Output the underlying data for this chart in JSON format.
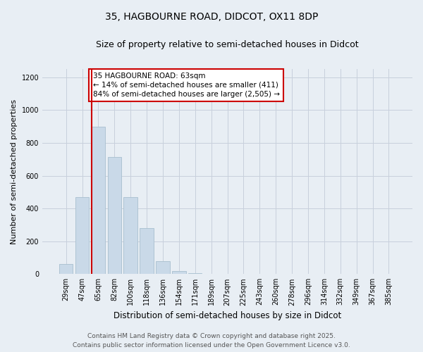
{
  "title1": "35, HAGBOURNE ROAD, DIDCOT, OX11 8DP",
  "title2": "Size of property relative to semi-detached houses in Didcot",
  "xlabel": "Distribution of semi-detached houses by size in Didcot",
  "ylabel": "Number of semi-detached properties",
  "bar_labels": [
    "29sqm",
    "47sqm",
    "65sqm",
    "82sqm",
    "100sqm",
    "118sqm",
    "136sqm",
    "154sqm",
    "171sqm",
    "189sqm",
    "207sqm",
    "225sqm",
    "243sqm",
    "260sqm",
    "278sqm",
    "296sqm",
    "314sqm",
    "332sqm",
    "349sqm",
    "367sqm",
    "385sqm"
  ],
  "bar_values": [
    60,
    470,
    900,
    715,
    470,
    280,
    80,
    20,
    5,
    0,
    0,
    0,
    0,
    0,
    0,
    0,
    0,
    0,
    0,
    0,
    0
  ],
  "bar_color": "#c9d9e8",
  "bar_edge_color": "#a8bfcf",
  "property_bin_index": 1,
  "annotation_text": "35 HAGBOURNE ROAD: 63sqm\n← 14% of semi-detached houses are smaller (411)\n84% of semi-detached houses are larger (2,505) →",
  "annotation_box_color": "#ffffff",
  "annotation_box_edge": "#cc0000",
  "vline_color": "#cc0000",
  "ylim": [
    0,
    1250
  ],
  "yticks": [
    0,
    200,
    400,
    600,
    800,
    1000,
    1200
  ],
  "grid_color": "#c8d0dc",
  "background_color": "#e8eef4",
  "plot_bg_color": "#e8eef4",
  "footer_line1": "Contains HM Land Registry data © Crown copyright and database right 2025.",
  "footer_line2": "Contains public sector information licensed under the Open Government Licence v3.0.",
  "title1_fontsize": 10,
  "title2_fontsize": 9,
  "xlabel_fontsize": 8.5,
  "ylabel_fontsize": 8,
  "tick_fontsize": 7,
  "footer_fontsize": 6.5,
  "annotation_fontsize": 7.5
}
